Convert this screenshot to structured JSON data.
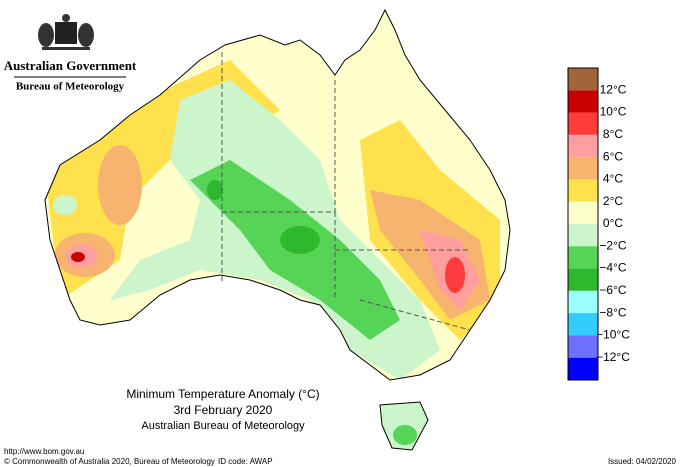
{
  "header": {
    "government": "Australian Government",
    "bureau": "Bureau of Meteorology"
  },
  "title": {
    "line1": "Minimum Temperature Anomaly (°C)",
    "line2": "3rd February 2020",
    "line3": "Australian Bureau of Meteorology"
  },
  "legend": {
    "colors": [
      "#a0663a",
      "#c80000",
      "#ff3c3c",
      "#ff9e9e",
      "#f7b46e",
      "#ffe14d",
      "#ffffcc",
      "#ccf5cc",
      "#55d455",
      "#2eb82e",
      "#99ffff",
      "#33ccff",
      "#6e6eff",
      "#0000ff"
    ],
    "labels": [
      "12°C",
      "10°C",
      "8°C",
      "6°C",
      "4°C",
      "2°C",
      "0°C",
      "−2°C",
      "−4°C",
      "−6°C",
      "−8°C",
      "−10°C",
      "−12°C"
    ]
  },
  "footer": {
    "url": "http://www.bom.gov.au",
    "copyright": "© Commonwealth of Australia 2020, Bureau of Meteorology",
    "id": "ID code: AWAP",
    "issued": "Issued: 04/02/2020"
  }
}
